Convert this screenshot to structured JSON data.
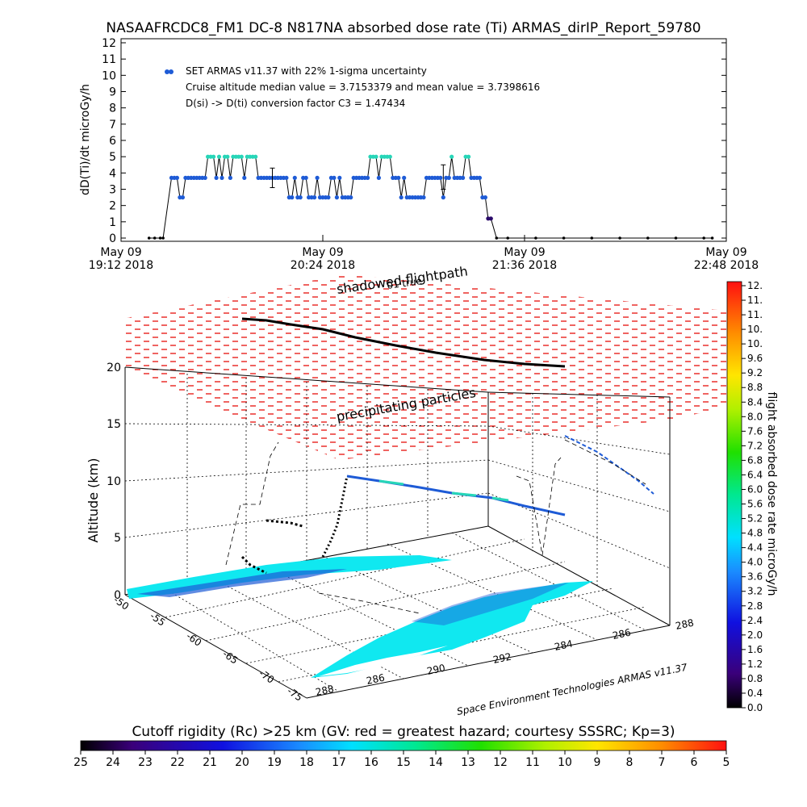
{
  "title": "NASAAFRCDC8_FM1 DC-8   N817NA absorbed dose rate (Ti) ARMAS_dirIP_Report_59780",
  "top_panel": {
    "ylabel": "dD(Ti)/dt microGy/h",
    "legend_text": "SET ARMAS v11.37 with 22% 1-sigma uncertainty",
    "note_median": "Cruise altitude median value = 3.7153379 and mean value = 3.7398616",
    "note_conversion": "D(si) -> D(ti) conversion factor C3 = 1.47434",
    "x_ticks": [
      {
        "line1": "May 09",
        "line2": "19:12 2018"
      },
      {
        "line1": "May 09",
        "line2": "20:24 2018"
      },
      {
        "line1": "May 09",
        "line2": "21:36 2018"
      },
      {
        "line1": "May 09",
        "line2": "22:48 2018"
      }
    ]
  },
  "scene3d": {
    "shadow_label": "shadowed flightpath",
    "shadow_sublabel": "01 true",
    "precip_label": "precipitating particles",
    "ylabel": "Altitude (km)",
    "z_ticks": [
      "0",
      "5",
      "10",
      "15",
      "20"
    ],
    "lat_ticks": [
      "-50",
      "-55",
      "-60",
      "-65",
      "-70",
      "-75"
    ],
    "lon_ticks": [
      "288",
      "286",
      "290",
      "292",
      "284",
      "286",
      "288"
    ],
    "credit": "Space Environment Technologies ARMAS v11.37"
  },
  "colorbar_right": {
    "label": "flight absorbed dose rate microGy/h",
    "ticks": [
      "12.",
      "11.",
      "11.",
      "10.",
      "10.",
      "9.6",
      "9.2",
      "8.8",
      "8.4",
      "8.0",
      "7.6",
      "7.2",
      "6.8",
      "6.4",
      "6.0",
      "5.6",
      "5.2",
      "4.8",
      "4.4",
      "4.0",
      "3.6",
      "3.2",
      "2.8",
      "2.4",
      "2.0",
      "1.6",
      "1.2",
      "0.8",
      "0.4",
      "0.0"
    ]
  },
  "colorbar_bottom": {
    "label": "Cutoff rigidity (Rc) >25 km (GV: red = greatest hazard; courtesy SSSRC; Kp=3)",
    "ticks": [
      "25",
      "24",
      "23",
      "22",
      "21",
      "20",
      "19",
      "18",
      "17",
      "16",
      "15",
      "14",
      "13",
      "12",
      "11",
      "10",
      "9",
      "8",
      "7",
      "6",
      "5"
    ]
  },
  "colors": {
    "point_blue": "#1e5bd6",
    "point_cyan": "#27d6b8",
    "point_dark": "#2a0a6a",
    "precip_red": "#e8201c",
    "ground_cyan": "#10e8f0"
  },
  "chart_data": {
    "type": "scatter",
    "x_unit": "UTC time, May 09 2018",
    "y_unit": "microGy/h",
    "ylim": [
      0,
      12
    ],
    "xlim": [
      "19:12",
      "22:48"
    ],
    "series": [
      {
        "name": "SET ARMAS v11.37 with 22% 1-sigma uncertainty",
        "points": [
          [
            "19:22",
            0
          ],
          [
            "19:24",
            0
          ],
          [
            "19:26",
            0
          ],
          [
            "19:27",
            0
          ],
          [
            "19:30",
            3.7
          ],
          [
            "19:31",
            3.7
          ],
          [
            "19:32",
            3.7
          ],
          [
            "19:33",
            2.5
          ],
          [
            "19:34",
            2.5
          ],
          [
            "19:35",
            3.7
          ],
          [
            "19:36",
            3.7
          ],
          [
            "19:37",
            3.7
          ],
          [
            "19:38",
            3.7
          ],
          [
            "19:39",
            3.7
          ],
          [
            "19:40",
            3.7
          ],
          [
            "19:41",
            3.7
          ],
          [
            "19:42",
            3.7
          ],
          [
            "19:43",
            5.0
          ],
          [
            "19:44",
            5.0
          ],
          [
            "19:45",
            5.0
          ],
          [
            "19:46",
            3.7
          ],
          [
            "19:47",
            5.0
          ],
          [
            "19:48",
            3.7
          ],
          [
            "19:49",
            5.0
          ],
          [
            "19:50",
            5.0
          ],
          [
            "19:51",
            3.7
          ],
          [
            "19:52",
            5.0
          ],
          [
            "19:53",
            5.0
          ],
          [
            "19:54",
            5.0
          ],
          [
            "19:55",
            5.0
          ],
          [
            "19:56",
            3.7
          ],
          [
            "19:57",
            5.0
          ],
          [
            "19:58",
            5.0
          ],
          [
            "19:59",
            5.0
          ],
          [
            "20:00",
            5.0
          ],
          [
            "20:01",
            3.7
          ],
          [
            "20:02",
            3.7
          ],
          [
            "20:03",
            3.7
          ],
          [
            "20:04",
            3.7
          ],
          [
            "20:05",
            3.7
          ],
          [
            "20:06",
            3.7
          ],
          [
            "20:07",
            3.7
          ],
          [
            "20:08",
            3.7
          ],
          [
            "20:09",
            3.7
          ],
          [
            "20:10",
            3.7
          ],
          [
            "20:11",
            3.7
          ],
          [
            "20:12",
            2.5
          ],
          [
            "20:13",
            2.5
          ],
          [
            "20:14",
            3.7
          ],
          [
            "20:15",
            2.5
          ],
          [
            "20:16",
            2.5
          ],
          [
            "20:17",
            3.7
          ],
          [
            "20:18",
            3.7
          ],
          [
            "20:19",
            2.5
          ],
          [
            "20:20",
            2.5
          ],
          [
            "20:21",
            2.5
          ],
          [
            "20:22",
            3.7
          ],
          [
            "20:23",
            2.5
          ],
          [
            "20:24",
            2.5
          ],
          [
            "20:25",
            2.5
          ],
          [
            "20:26",
            2.5
          ],
          [
            "20:27",
            3.7
          ],
          [
            "20:28",
            3.7
          ],
          [
            "20:29",
            2.5
          ],
          [
            "20:30",
            3.7
          ],
          [
            "20:31",
            2.5
          ],
          [
            "20:32",
            2.5
          ],
          [
            "20:33",
            2.5
          ],
          [
            "20:34",
            2.5
          ],
          [
            "20:35",
            3.7
          ],
          [
            "20:36",
            3.7
          ],
          [
            "20:37",
            3.7
          ],
          [
            "20:38",
            3.7
          ],
          [
            "20:39",
            3.7
          ],
          [
            "20:40",
            3.7
          ],
          [
            "20:41",
            5.0
          ],
          [
            "20:42",
            5.0
          ],
          [
            "20:43",
            5.0
          ],
          [
            "20:44",
            3.7
          ],
          [
            "20:45",
            5.0
          ],
          [
            "20:46",
            5.0
          ],
          [
            "20:47",
            5.0
          ],
          [
            "20:48",
            5.0
          ],
          [
            "20:49",
            3.7
          ],
          [
            "20:50",
            3.7
          ],
          [
            "20:51",
            3.7
          ],
          [
            "20:52",
            2.5
          ],
          [
            "20:53",
            3.7
          ],
          [
            "20:54",
            2.5
          ],
          [
            "20:55",
            2.5
          ],
          [
            "20:56",
            2.5
          ],
          [
            "20:57",
            2.5
          ],
          [
            "20:58",
            2.5
          ],
          [
            "20:59",
            2.5
          ],
          [
            "21:00",
            2.5
          ],
          [
            "21:01",
            3.7
          ],
          [
            "21:02",
            3.7
          ],
          [
            "21:03",
            3.7
          ],
          [
            "21:04",
            3.7
          ],
          [
            "21:05",
            3.7
          ],
          [
            "21:06",
            3.7
          ],
          [
            "21:07",
            2.5
          ],
          [
            "21:08",
            3.7
          ],
          [
            "21:09",
            3.7
          ],
          [
            "21:10",
            5.0
          ],
          [
            "21:11",
            3.7
          ],
          [
            "21:12",
            3.7
          ],
          [
            "21:13",
            3.7
          ],
          [
            "21:14",
            3.7
          ],
          [
            "21:15",
            5.0
          ],
          [
            "21:16",
            5.0
          ],
          [
            "21:17",
            3.7
          ],
          [
            "21:18",
            3.7
          ],
          [
            "21:19",
            3.7
          ],
          [
            "21:20",
            3.7
          ],
          [
            "21:21",
            2.5
          ],
          [
            "21:22",
            2.5
          ],
          [
            "21:23",
            1.2
          ],
          [
            "21:24",
            1.2
          ],
          [
            "21:26",
            0
          ],
          [
            "21:30",
            0
          ],
          [
            "21:40",
            0
          ],
          [
            "21:50",
            0
          ],
          [
            "22:00",
            0
          ],
          [
            "22:10",
            0
          ],
          [
            "22:20",
            0
          ],
          [
            "22:30",
            0
          ],
          [
            "22:40",
            0
          ],
          [
            "22:43",
            0
          ]
        ]
      }
    ],
    "error_bars": [
      {
        "x": "20:06",
        "low": 3.1,
        "high": 4.3
      },
      {
        "x": "21:07",
        "low": 3.0,
        "high": 4.5
      }
    ]
  }
}
